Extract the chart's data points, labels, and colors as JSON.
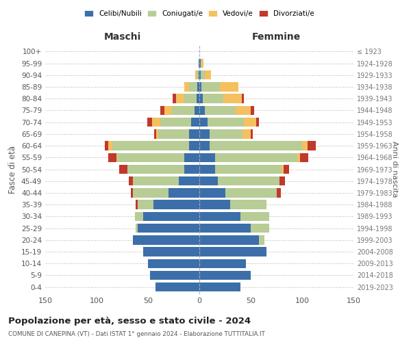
{
  "age_groups": [
    "0-4",
    "5-9",
    "10-14",
    "15-19",
    "20-24",
    "25-29",
    "30-34",
    "35-39",
    "40-44",
    "45-49",
    "50-54",
    "55-59",
    "60-64",
    "65-69",
    "70-74",
    "75-79",
    "80-84",
    "85-89",
    "90-94",
    "95-99",
    "100+"
  ],
  "birth_years": [
    "2019-2023",
    "2014-2018",
    "2009-2013",
    "2004-2008",
    "1999-2003",
    "1994-1998",
    "1989-1993",
    "1984-1988",
    "1979-1983",
    "1974-1978",
    "1969-1973",
    "1964-1968",
    "1959-1963",
    "1954-1958",
    "1949-1953",
    "1944-1948",
    "1939-1943",
    "1934-1938",
    "1929-1933",
    "1924-1928",
    "≤ 1923"
  ],
  "colors": {
    "celibi": "#3c6faa",
    "coniugati": "#b8cc96",
    "vedovi": "#f5c060",
    "divorziati": "#c0392b"
  },
  "males": {
    "celibi": [
      43,
      48,
      50,
      55,
      65,
      60,
      55,
      45,
      30,
      20,
      15,
      15,
      10,
      10,
      8,
      5,
      3,
      2,
      1,
      1,
      0
    ],
    "coniugati": [
      0,
      0,
      0,
      0,
      0,
      2,
      8,
      15,
      35,
      45,
      55,
      65,
      75,
      30,
      30,
      22,
      12,
      8,
      2,
      0,
      0
    ],
    "vedovi": [
      0,
      0,
      0,
      0,
      0,
      0,
      0,
      0,
      0,
      0,
      0,
      1,
      4,
      2,
      8,
      7,
      8,
      5,
      1,
      0,
      0
    ],
    "divorziati": [
      0,
      0,
      0,
      0,
      0,
      0,
      0,
      2,
      2,
      4,
      8,
      8,
      3,
      2,
      5,
      4,
      3,
      0,
      0,
      0,
      0
    ]
  },
  "females": {
    "nubili": [
      40,
      50,
      45,
      65,
      58,
      50,
      40,
      30,
      25,
      18,
      15,
      15,
      10,
      10,
      8,
      5,
      3,
      2,
      1,
      1,
      0
    ],
    "coniugate": [
      0,
      0,
      0,
      0,
      5,
      18,
      28,
      35,
      50,
      60,
      65,
      80,
      90,
      32,
      35,
      30,
      20,
      18,
      4,
      1,
      0
    ],
    "vedove": [
      0,
      0,
      0,
      0,
      0,
      0,
      0,
      0,
      0,
      0,
      2,
      3,
      5,
      8,
      12,
      15,
      18,
      18,
      6,
      2,
      0
    ],
    "divorziate": [
      0,
      0,
      0,
      0,
      0,
      0,
      0,
      0,
      4,
      5,
      5,
      8,
      8,
      2,
      3,
      3,
      2,
      0,
      0,
      0,
      0
    ]
  },
  "title": "Popolazione per età, sesso e stato civile - 2024",
  "subtitle": "COMUNE DI CANEPINA (VT) - Dati ISTAT 1° gennaio 2024 - Elaborazione TUTTITALIA.IT",
  "xlabel_left": "Maschi",
  "xlabel_right": "Femmine",
  "ylabel_left": "Fasce di età",
  "ylabel_right": "Anni di nascita",
  "xlim": 150,
  "legend_labels": [
    "Celibi/Nubili",
    "Coniugati/e",
    "Vedovi/e",
    "Divorziati/e"
  ],
  "background_color": "#ffffff",
  "grid_color": "#cccccc"
}
